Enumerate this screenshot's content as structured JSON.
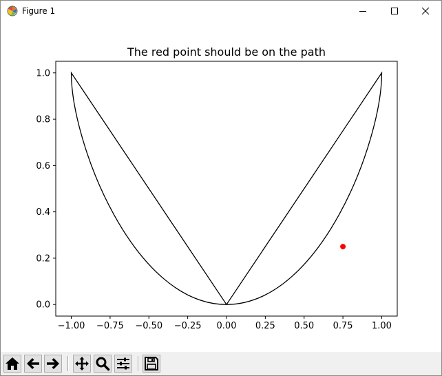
{
  "window": {
    "title": "Figure 1",
    "controls": {
      "minimize": "minimize-icon",
      "maximize": "maximize-icon",
      "close": "close-icon"
    }
  },
  "toolbar": {
    "buttons": [
      {
        "id": "home",
        "icon": "home-icon"
      },
      {
        "id": "back",
        "icon": "arrow-left-icon"
      },
      {
        "id": "forward",
        "icon": "arrow-right-icon"
      },
      {
        "id": "pan",
        "icon": "move-icon"
      },
      {
        "id": "zoom",
        "icon": "magnifier-icon"
      },
      {
        "id": "subplots",
        "icon": "sliders-icon"
      },
      {
        "id": "save",
        "icon": "floppy-disk-icon"
      }
    ]
  },
  "chart_data": {
    "type": "line",
    "title": "The red point should be on the path",
    "xlabel": "",
    "ylabel": "",
    "xlim": [
      -1.1,
      1.1
    ],
    "ylim": [
      -0.05,
      1.05
    ],
    "xticks": [
      "−1.00",
      "−0.75",
      "−0.50",
      "−0.25",
      "0.00",
      "0.25",
      "0.50",
      "0.75",
      "1.00"
    ],
    "xtick_values": [
      -1.0,
      -0.75,
      -0.5,
      -0.25,
      0.0,
      0.25,
      0.5,
      0.75,
      1.0
    ],
    "yticks": [
      "0.0",
      "0.2",
      "0.4",
      "0.6",
      "0.8",
      "1.0"
    ],
    "ytick_values": [
      0.0,
      0.2,
      0.4,
      0.6,
      0.8,
      1.0
    ],
    "grid": false,
    "series": [
      {
        "kind": "path",
        "color": "#000000",
        "points": [
          [
            0,
            0
          ],
          [
            1,
            1
          ],
          [
            1,
            0.7
          ],
          [
            0.6,
            0
          ],
          [
            0,
            0
          ],
          [
            -0.6,
            0
          ],
          [
            -1,
            0.7
          ],
          [
            -1,
            1
          ],
          [
            0,
            0
          ]
        ],
        "curve_segments": "cubic-bezier"
      },
      {
        "kind": "point",
        "color": "#ff0000",
        "x": 0.75,
        "y": 0.25
      }
    ]
  }
}
